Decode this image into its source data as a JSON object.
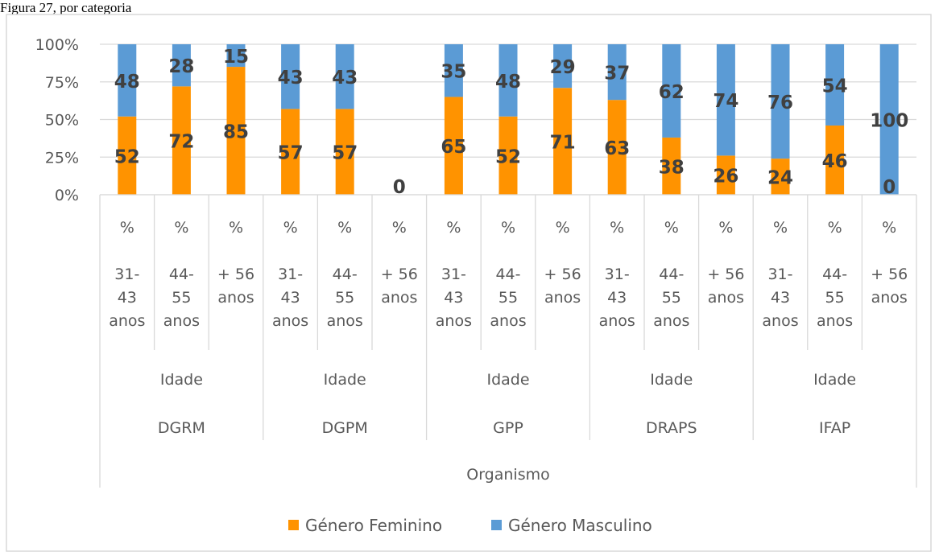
{
  "page_text": "Figura 27, por categoria",
  "chart_data": {
    "type": "bar",
    "stacked": "percent",
    "title": "",
    "xlabel": "",
    "ylabel": "",
    "ylim": [
      0,
      100
    ],
    "y_ticks": [
      "0%",
      "25%",
      "50%",
      "75%",
      "100%"
    ],
    "gridlines": true,
    "legend_position": "bottom",
    "axis_levels": {
      "level1": "%",
      "level2": [
        "31-43 anos",
        "44-55 anos",
        "+ 56 anos"
      ],
      "level3": "Idade",
      "level4": [
        "DGRM",
        "DGPM",
        "GPP",
        "DRAPS",
        "IFAP"
      ],
      "level5": "Organismo"
    },
    "categories": [
      "DGRM 31-43 anos",
      "DGRM 44-55 anos",
      "DGRM + 56 anos",
      "DGPM 31-43 anos",
      "DGPM 44-55 anos",
      "DGPM + 56 anos",
      "GPP 31-43 anos",
      "GPP 44-55 anos",
      "GPP + 56 anos",
      "DRAPS 31-43 anos",
      "DRAPS 44-55 anos",
      "DRAPS + 56 anos",
      "IFAP 31-43 anos",
      "IFAP 44-55 anos",
      "IFAP + 56 anos"
    ],
    "series": [
      {
        "name": "Género Feminino",
        "color": "#ff9300",
        "values": [
          52,
          72,
          85,
          57,
          57,
          0,
          65,
          52,
          71,
          63,
          38,
          26,
          24,
          46,
          0
        ],
        "labels": [
          "52",
          "72",
          "85",
          "57",
          "57",
          "0",
          "65",
          "52",
          "71",
          "63",
          "38",
          "26",
          "24",
          "46",
          "0"
        ]
      },
      {
        "name": "Género Masculino",
        "color": "#5b9bd5",
        "values": [
          48,
          28,
          15,
          43,
          43,
          0,
          35,
          48,
          29,
          37,
          62,
          74,
          76,
          54,
          100
        ],
        "labels": [
          "48",
          "28",
          "15",
          "43",
          "43",
          "",
          "35",
          "48",
          "29",
          "37",
          "62",
          "74",
          "76",
          "54",
          "100"
        ]
      }
    ]
  }
}
